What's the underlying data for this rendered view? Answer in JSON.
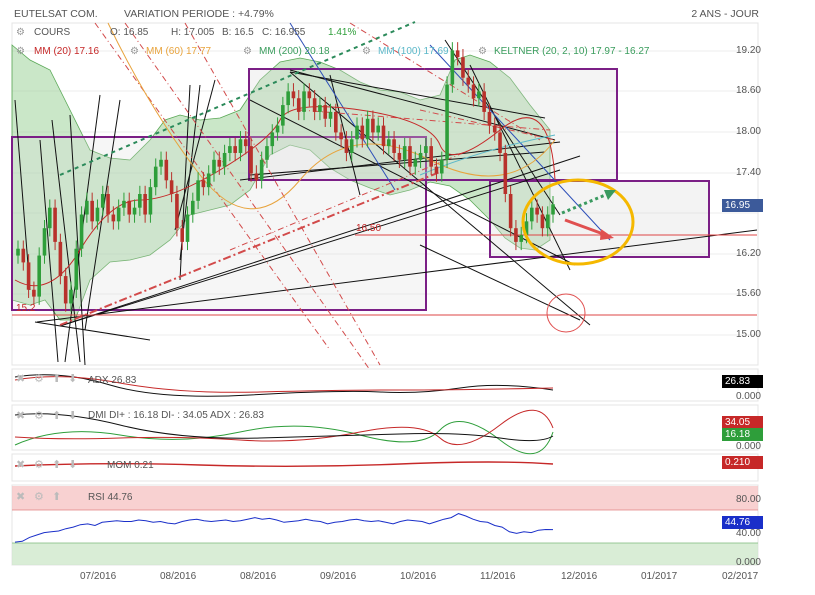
{
  "header": {
    "symbol": "EUTELSAT COM.",
    "variation": "VARIATION PERIODE : +4.79%",
    "period": "2 ANS - JOUR"
  },
  "ohlc": {
    "cours_label": "COURS",
    "open": "O: 16.85",
    "high": "H: 17.005",
    "low": "B: 16.5",
    "close": "C: 16.955",
    "change": "1.41%"
  },
  "indicators": {
    "mm20": "MM (20) 17.16",
    "mm60": "MM (60) 17.77",
    "mm200": "MM (200) 20.18",
    "mm100": "MM (100) 17.69",
    "keltner": "KELTNER (20, 2, 10) 17.97 - 16.27"
  },
  "annotations": {
    "level_1650": "16.50",
    "level_15": "15.2"
  },
  "panels": {
    "adx_label": "ADX 26.83",
    "dmi_label": "DMI DI+ : 16.18 DI- : 34.05 ADX : 26.83",
    "mom_label": "MOM 0.21",
    "rsi_label": "RSI 44.76"
  },
  "last_values": {
    "price": "16.95",
    "adx": "26.83",
    "adx_zero": "0.000",
    "dmi_minus": "34.05",
    "dmi_plus": "16.18",
    "dmi_zero": "0.000",
    "mom": "0.210",
    "rsi": "44.76",
    "rsi_80": "80.00",
    "rsi_40": "40.00",
    "rsi_0": "0.000"
  },
  "colors": {
    "up": "#2e9e3a",
    "down": "#b8312b",
    "keltner_fill": "#9fd49a",
    "rect_purple": "#7b1f86",
    "ellipse_yellow": "#f5b800",
    "rsi_line": "#1a2fc9",
    "mm20": "#c62828",
    "mm60": "#e8a33c",
    "mm100": "#5bb8c9",
    "mm200": "#3a9d5d",
    "price_box": "#3c5a9a",
    "adx_box": "#000000",
    "dmi_minus_box": "#c62828",
    "dmi_plus_box": "#2e9e3a",
    "rsi_box": "#1a2fc9"
  },
  "chart_data": {
    "type": "candlestick",
    "y_ticks": [
      "19.20",
      "18.60",
      "18.00",
      "17.40",
      "16.80",
      "16.20",
      "15.60",
      "15.00"
    ],
    "x_ticks": [
      "07/2016",
      "08/2016",
      "08/2016",
      "09/2016",
      "10/2016",
      "11/2016",
      "12/2016",
      "01/2017",
      "02/2017"
    ],
    "ylim": [
      14.6,
      19.6
    ],
    "close_series": [
      16.3,
      16.1,
      15.7,
      15.6,
      16.2,
      16.6,
      16.9,
      16.4,
      15.9,
      15.5,
      15.7,
      16.3,
      16.8,
      17.0,
      16.7,
      16.9,
      17.1,
      16.8,
      16.7,
      16.9,
      17.0,
      16.8,
      16.9,
      17.1,
      16.8,
      17.2,
      17.5,
      17.6,
      17.3,
      17.1,
      16.6,
      16.4,
      16.8,
      17.0,
      17.3,
      17.2,
      17.4,
      17.6,
      17.5,
      17.7,
      17.8,
      17.7,
      17.9,
      17.8,
      17.4,
      17.3,
      17.6,
      17.8,
      18.0,
      18.1,
      18.4,
      18.6,
      18.5,
      18.3,
      18.6,
      18.5,
      18.3,
      18.4,
      18.2,
      18.3,
      18.0,
      17.9,
      17.7,
      17.9,
      18.1,
      17.9,
      18.2,
      18.0,
      18.1,
      17.8,
      17.9,
      17.7,
      17.6,
      17.8,
      17.5,
      17.6,
      17.7,
      17.8,
      17.5,
      17.4,
      17.6,
      18.7,
      19.2,
      19.1,
      18.8,
      18.7,
      18.5,
      18.6,
      18.3,
      18.1,
      18.0,
      17.7,
      17.1,
      16.6,
      16.4,
      16.5,
      16.7,
      16.9,
      16.8,
      16.6,
      16.8,
      16.95
    ],
    "rsi_series": [
      29,
      30,
      35,
      38,
      41,
      42,
      43,
      46,
      48,
      51,
      52,
      50,
      54,
      55,
      56,
      55,
      55,
      57,
      56,
      54,
      55,
      53,
      52,
      55,
      57,
      58,
      56,
      55,
      56,
      57,
      55,
      56,
      58,
      60,
      58,
      59,
      57,
      54,
      55,
      56,
      58,
      56,
      55,
      52,
      54,
      55,
      57,
      58,
      56,
      55,
      56,
      54,
      52,
      55,
      57,
      56,
      55,
      52,
      55,
      58,
      60,
      65,
      62,
      58,
      55,
      54,
      50,
      48,
      42,
      40,
      42,
      41,
      44,
      45,
      44.76
    ],
    "rsi_levels": [
      80,
      40,
      0
    ]
  }
}
